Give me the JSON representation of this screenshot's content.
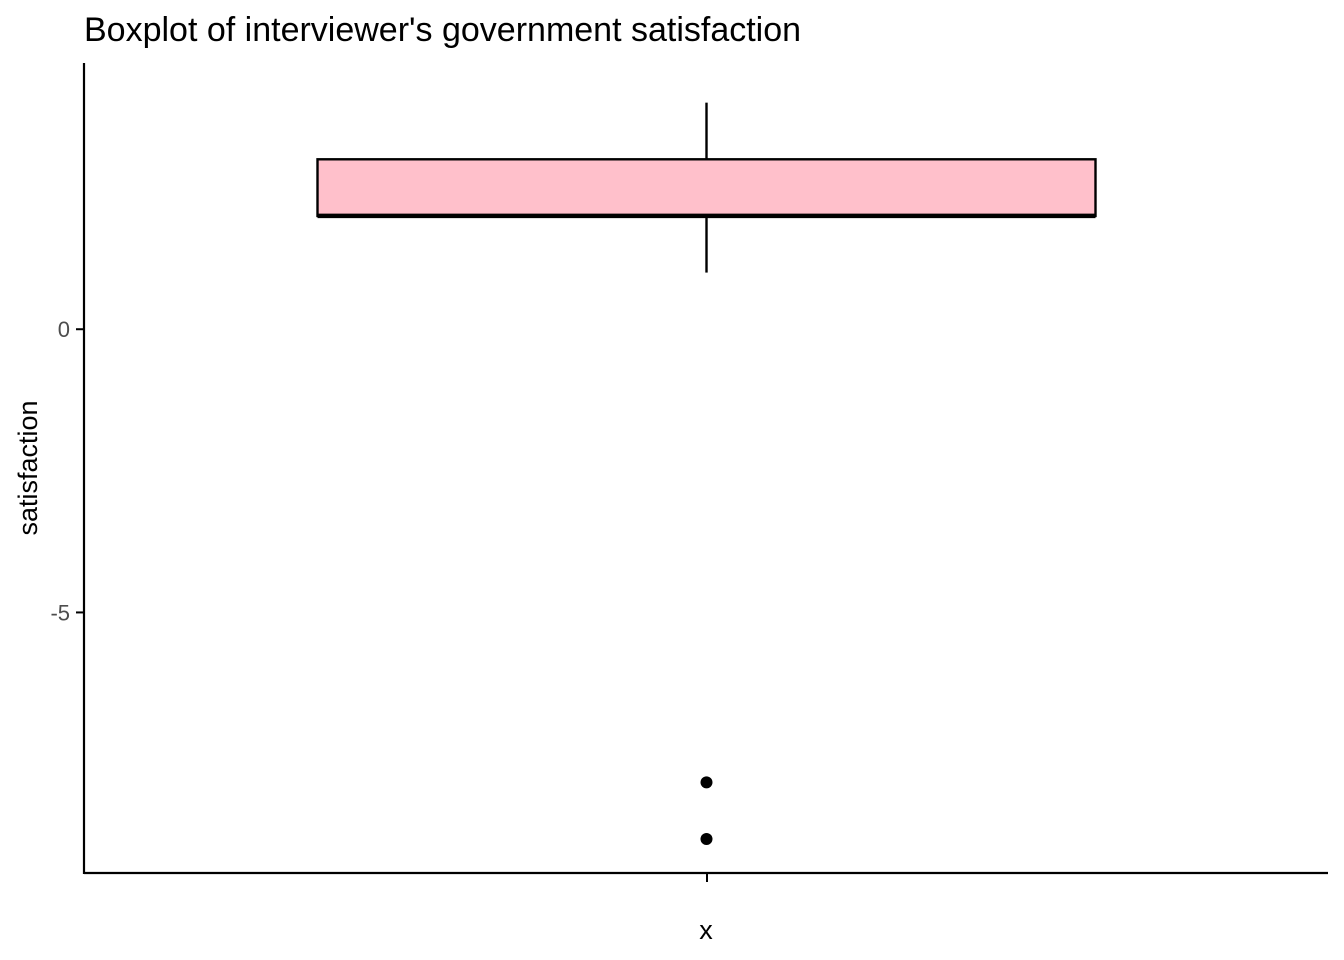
{
  "chart_data": {
    "type": "boxplot",
    "title": "Boxplot of interviewer's government satisfaction",
    "xlabel": "x",
    "ylabel": "satisfaction",
    "ylim": [
      -9.6,
      4.7
    ],
    "yticks": [
      0,
      -5
    ],
    "ytick_labels": [
      "0",
      "-5"
    ],
    "grid": false,
    "legend": "none",
    "boxes": [
      {
        "category": "",
        "whisker_low": 1,
        "q1": 2,
        "median": 2,
        "q3": 3,
        "whisker_high": 4,
        "outliers": [
          -8,
          -9
        ]
      }
    ],
    "colors": {
      "box_fill": "#FFC0CB",
      "stroke": "#000000",
      "tick_text": "#4d4d4d"
    }
  }
}
